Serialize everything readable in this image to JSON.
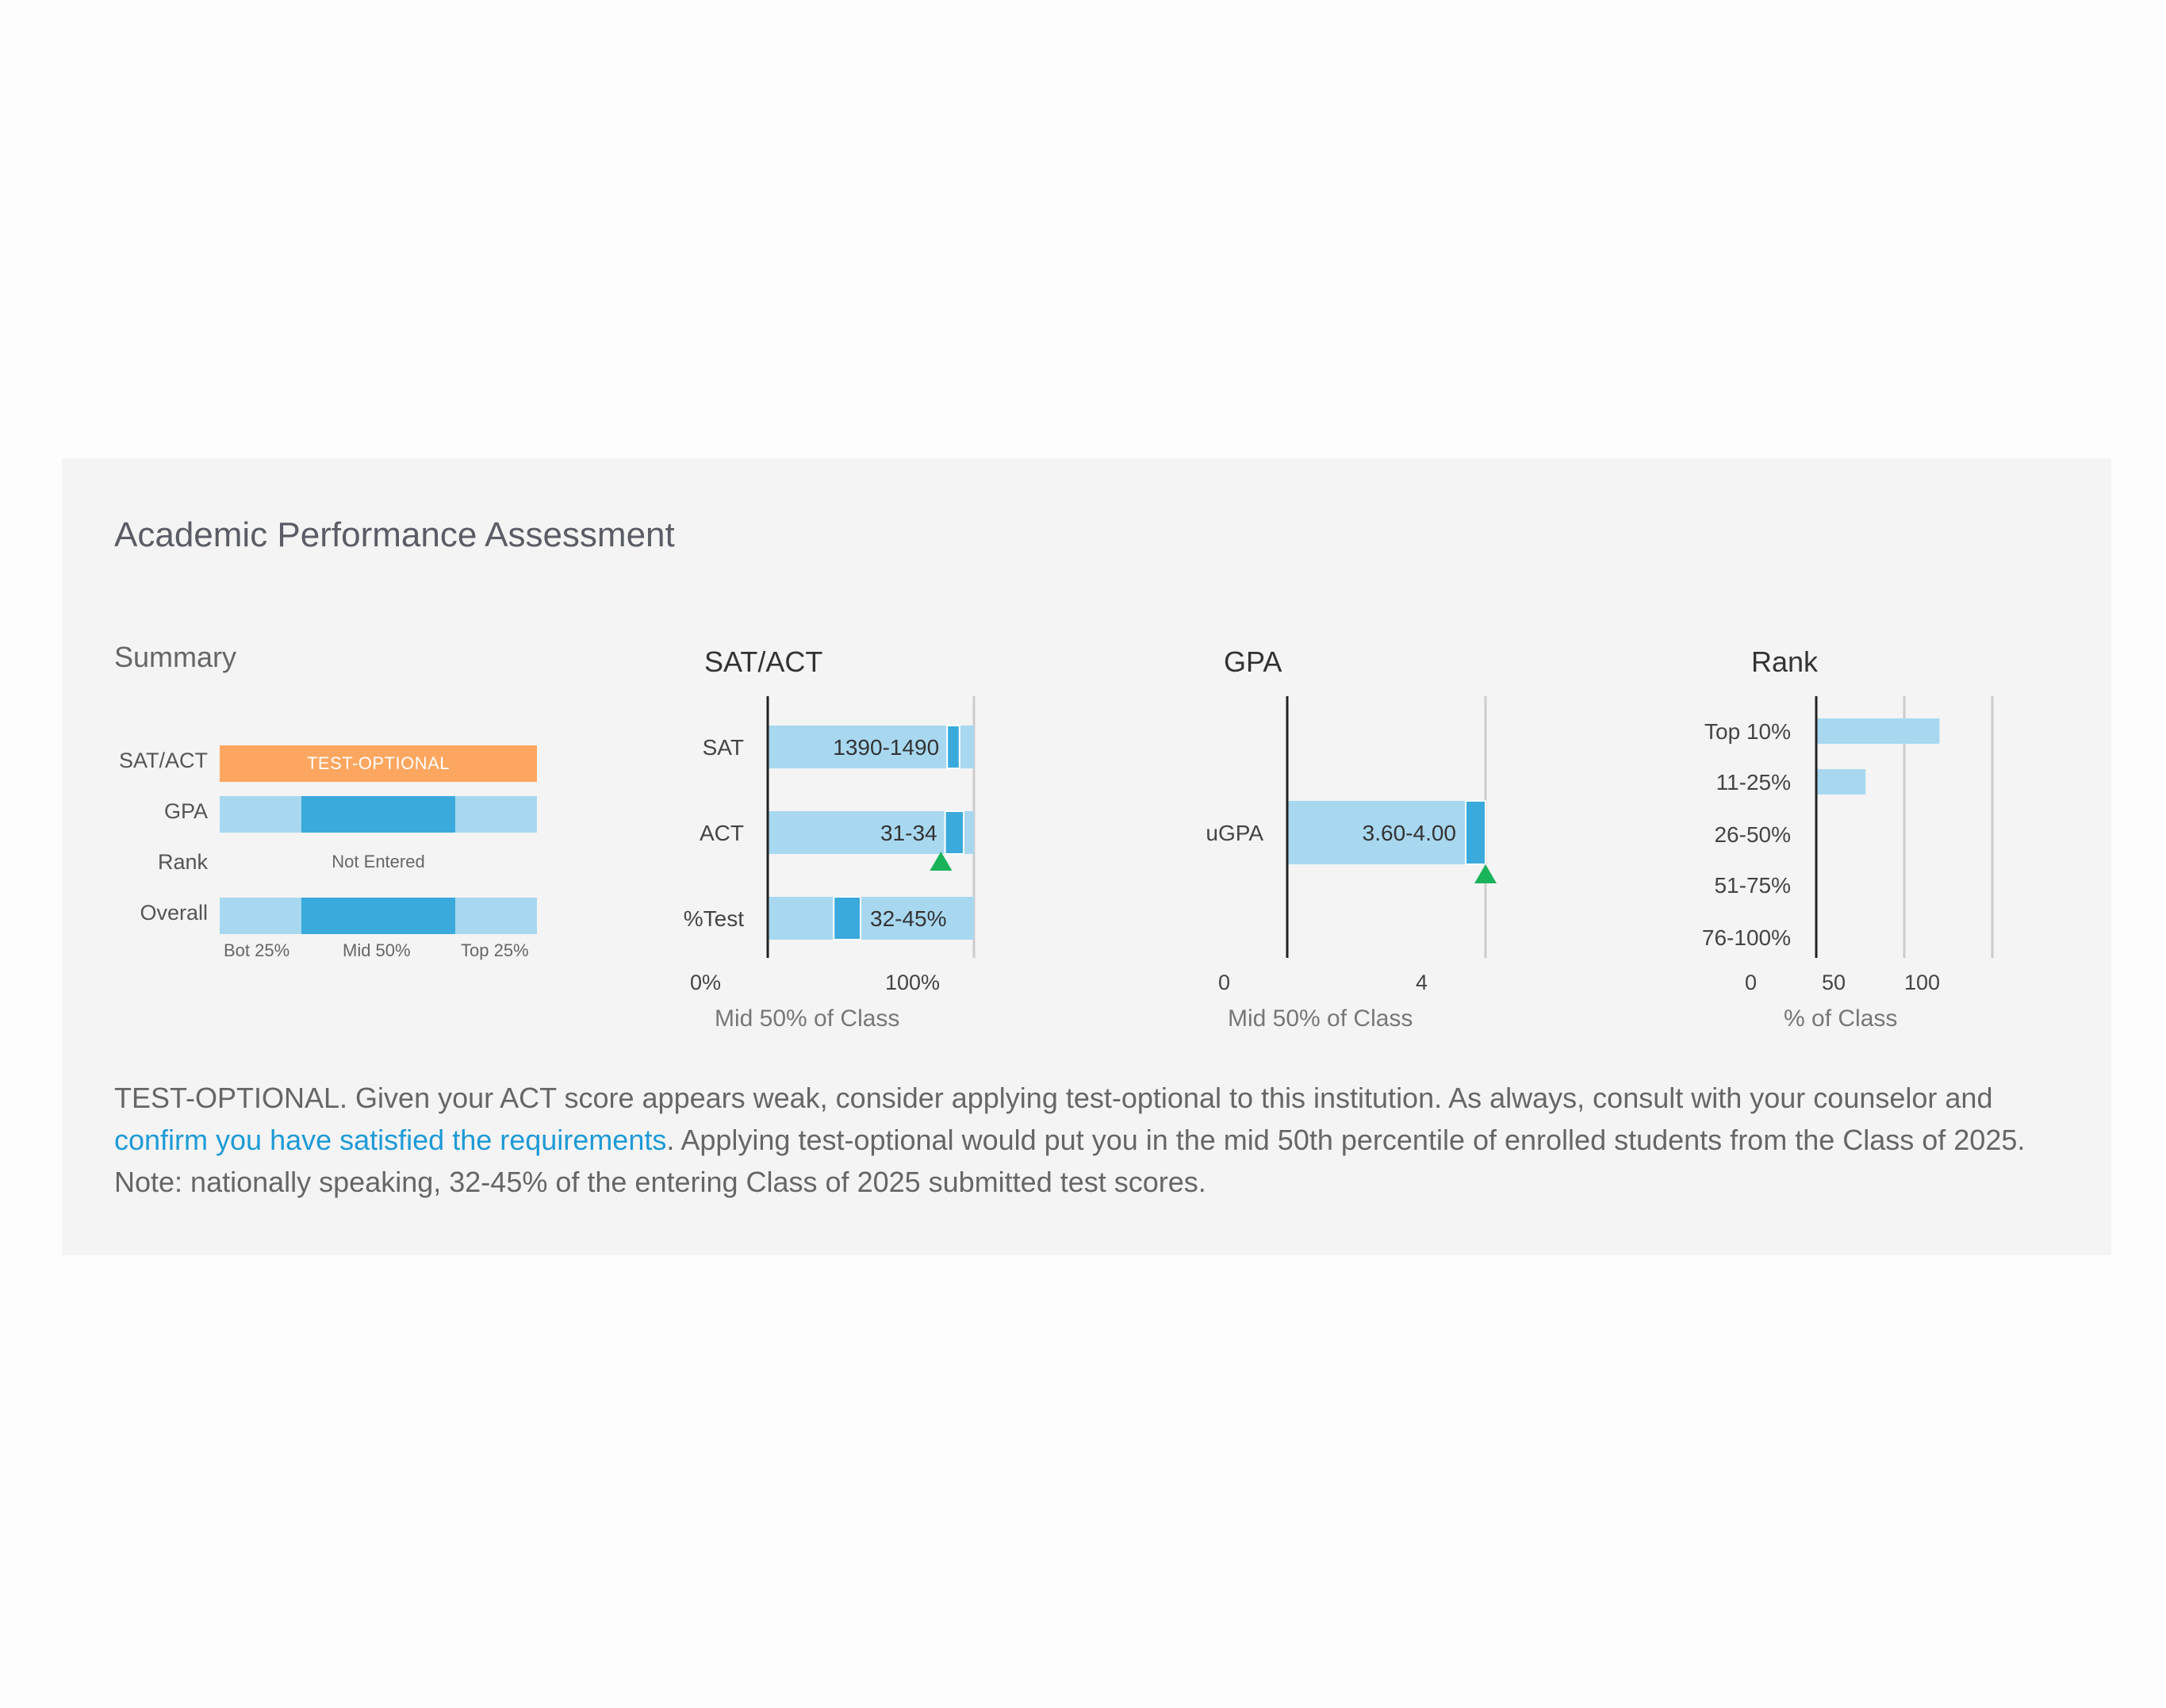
{
  "title": "Academic Performance Assessment",
  "summary": {
    "title": "Summary",
    "rows": [
      {
        "label": "SAT/ACT",
        "status": "TEST-OPTIONAL"
      },
      {
        "label": "GPA",
        "band": "Mid 50%"
      },
      {
        "label": "Rank",
        "status": "Not Entered"
      },
      {
        "label": "Overall",
        "band": "Mid 50%"
      }
    ],
    "scale": [
      "Bot 25%",
      "Mid 50%",
      "Top 25%"
    ],
    "colors": {
      "test_optional": "#fda65f",
      "light": "#a8d8f0",
      "dark": "#3aaadc"
    }
  },
  "sat_act": {
    "title": "SAT/ACT",
    "axis_caption": "Mid 50% of Class",
    "axis_ticks": [
      "0%",
      "100%"
    ],
    "rows": [
      {
        "label": "SAT",
        "value_label": "1390-1490"
      },
      {
        "label": "ACT",
        "value_label": "31-34"
      },
      {
        "label": "%Test",
        "value_label": "32-45%"
      }
    ]
  },
  "gpa": {
    "title": "GPA",
    "axis_caption": "Mid 50% of Class",
    "axis_ticks": [
      "0",
      "4"
    ],
    "rows": [
      {
        "label": "uGPA",
        "value_label": "3.60-4.00"
      }
    ]
  },
  "rank": {
    "title": "Rank",
    "axis_caption": "% of Class",
    "axis_ticks": [
      "0",
      "50",
      "100"
    ],
    "categories": [
      "Top 10%",
      "11-25%",
      "26-50%",
      "51-75%",
      "76-100%"
    ]
  },
  "chart_data": [
    {
      "type": "bar",
      "title": "SAT/ACT",
      "xlabel": "Mid 50% of Class",
      "xlim": [
        0,
        100
      ],
      "categories": [
        "SAT",
        "ACT",
        "%Test"
      ],
      "mid50_start_percent": [
        87,
        86,
        32
      ],
      "mid50_end_percent": [
        93,
        95,
        45
      ],
      "student_marker_percent": {
        "ACT": 84
      },
      "labels": [
        "1390-1490",
        "31-34",
        "32-45%"
      ]
    },
    {
      "type": "bar",
      "title": "GPA",
      "xlabel": "Mid 50% of Class",
      "xlim": [
        0,
        4
      ],
      "categories": [
        "uGPA"
      ],
      "mid50_start": [
        3.6
      ],
      "mid50_end": [
        4.0
      ],
      "student_marker": 4.0,
      "labels": [
        "3.60-4.00"
      ]
    },
    {
      "type": "bar",
      "title": "Rank",
      "xlabel": "% of Class",
      "xlim": [
        0,
        100
      ],
      "categories": [
        "Top 10%",
        "11-25%",
        "26-50%",
        "51-75%",
        "76-100%"
      ],
      "values": [
        70,
        28,
        0,
        0,
        0
      ]
    }
  ],
  "note": {
    "text_before": "TEST-OPTIONAL. Given your ACT score appears weak, consider applying test-optional to this institution. As always, consult with your counselor and ",
    "link_text": "confirm you have satisfied the requirements",
    "text_after": ". Applying test-optional would put you in the mid 50th percentile of enrolled students from the Class of 2025. Note: nationally speaking, 32-45% of the entering Class of 2025 submitted test scores."
  }
}
